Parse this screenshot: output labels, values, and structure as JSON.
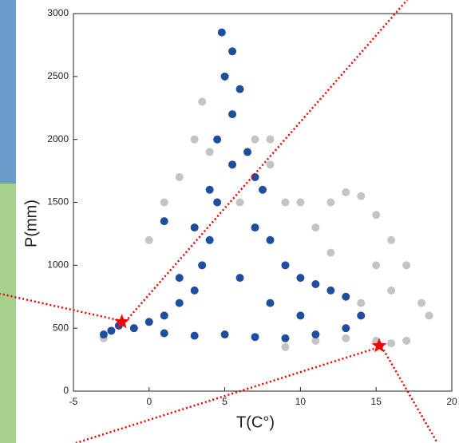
{
  "chart_data": {
    "type": "scatter",
    "x_label": "T(C°)",
    "y_label": "P(mm)",
    "xlim": [
      -5,
      20
    ],
    "xticks": [
      -5,
      0,
      5,
      10,
      15,
      20
    ],
    "ylim": [
      0,
      3000
    ],
    "yticks": [
      0,
      500,
      1000,
      1500,
      2000,
      2500,
      3000
    ],
    "series": [
      {
        "color": "#c4c4c4",
        "marker": "dot",
        "x": [
          -3,
          0,
          1,
          2,
          3,
          3.5,
          7,
          8,
          9,
          10,
          12,
          13,
          14,
          15,
          16,
          17,
          18,
          18.5,
          17,
          16,
          15,
          13,
          11,
          9,
          8,
          4,
          16,
          15,
          14,
          12,
          11,
          6
        ],
        "values": [
          420,
          1200,
          1500,
          1700,
          2000,
          2300,
          2000,
          1800,
          1500,
          1500,
          1500,
          1580,
          1550,
          1400,
          1200,
          1000,
          700,
          600,
          400,
          380,
          400,
          420,
          400,
          350,
          2000,
          1900,
          800,
          1000,
          700,
          1100,
          1300,
          1500
        ]
      },
      {
        "color": "#1f4e9f",
        "marker": "dot",
        "x": [
          -3,
          -2.5,
          -2,
          -1,
          0,
          1,
          2,
          3,
          3.5,
          4,
          4.5,
          4.5,
          5,
          4.8,
          5.5,
          6,
          5.5,
          6.5,
          7,
          7.5,
          7,
          8,
          9,
          10,
          11,
          12,
          13,
          14,
          13,
          11,
          9,
          7,
          5,
          3,
          1,
          2,
          6,
          8,
          10,
          4,
          5.5,
          1,
          3
        ],
        "values": [
          450,
          480,
          520,
          500,
          550,
          600,
          700,
          800,
          1000,
          1200,
          1500,
          2000,
          2500,
          2850,
          2700,
          2400,
          2200,
          1900,
          1700,
          1600,
          1300,
          1200,
          1000,
          900,
          850,
          800,
          750,
          600,
          500,
          450,
          420,
          430,
          450,
          440,
          460,
          900,
          900,
          700,
          600,
          1600,
          1800,
          1350,
          1300
        ]
      },
      {
        "color": "#ff0000",
        "marker": "star",
        "x": [
          -1.8,
          15.2
        ],
        "values": [
          550,
          360
        ]
      }
    ]
  }
}
